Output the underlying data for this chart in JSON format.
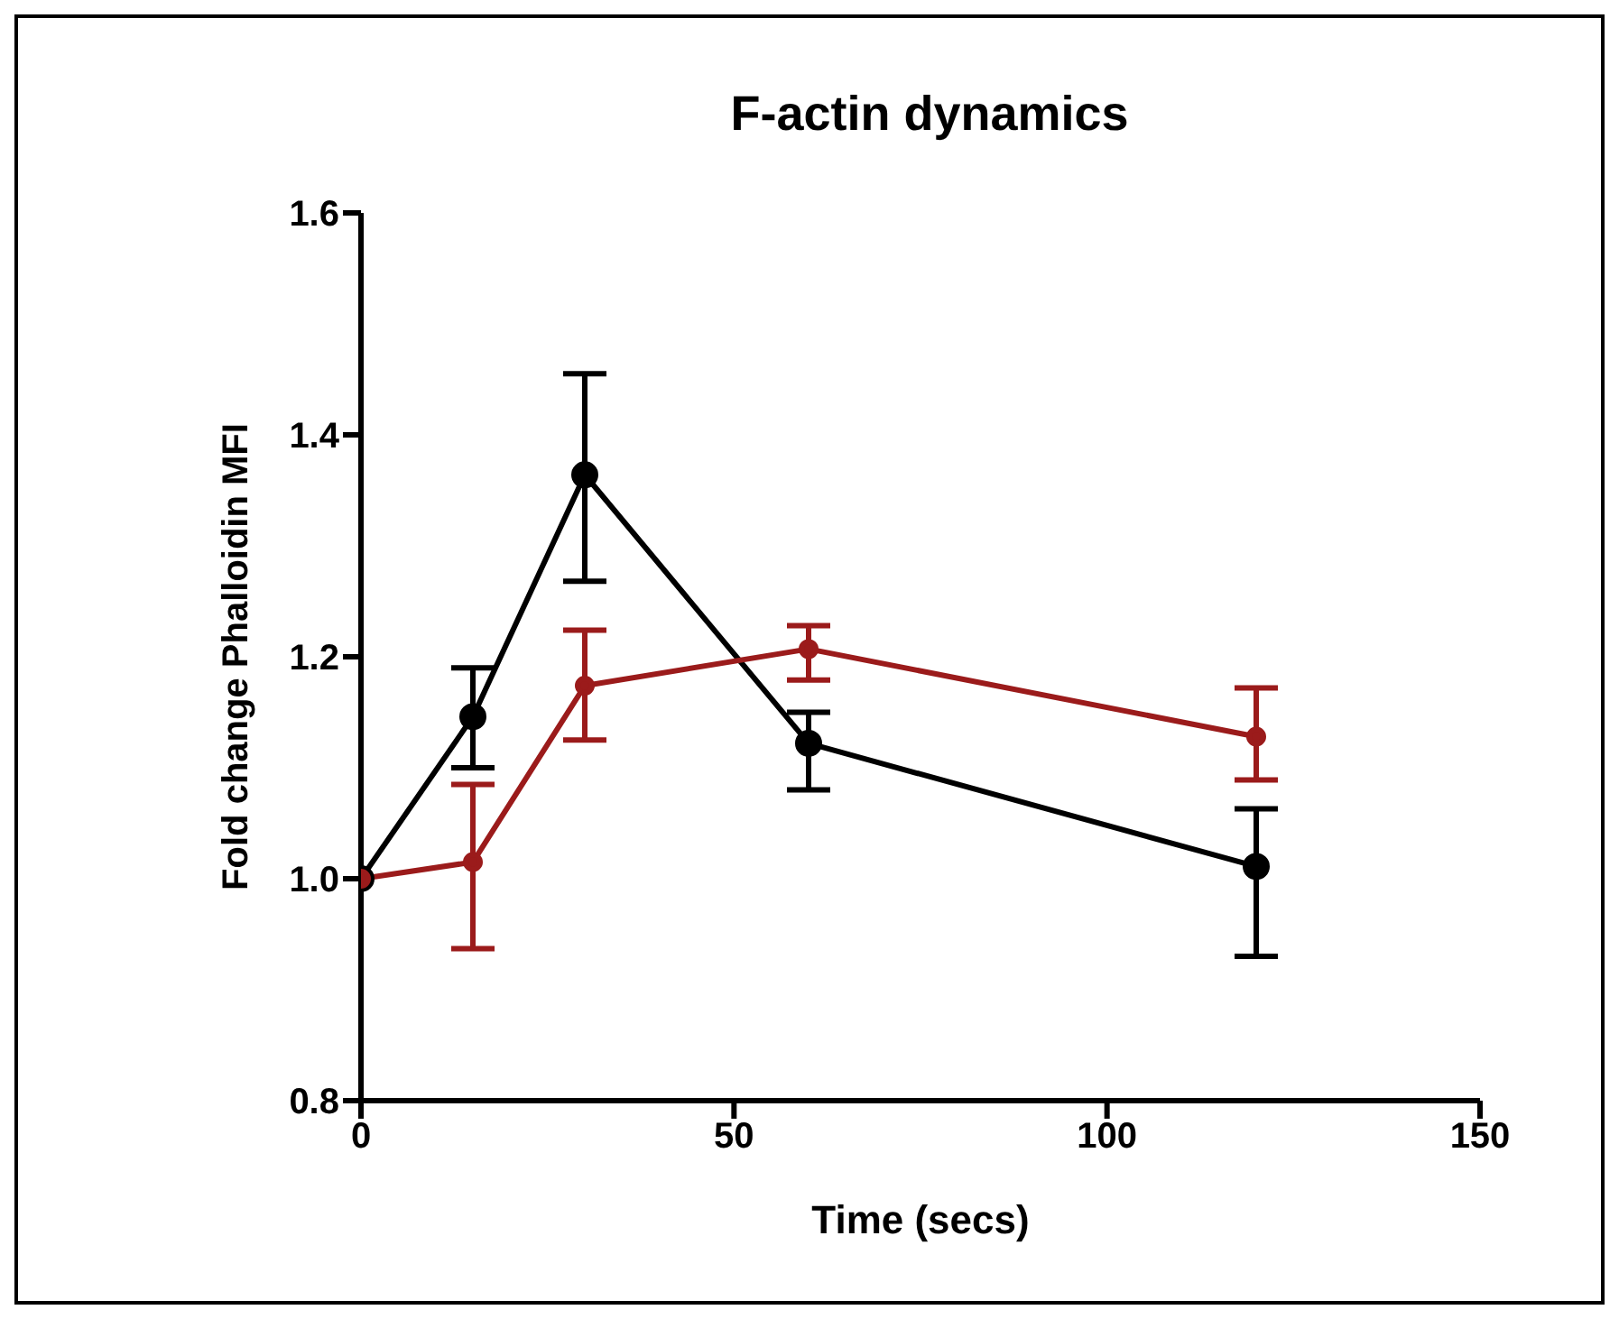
{
  "chart_data": {
    "type": "line",
    "title": "F-actin dynamics",
    "xlabel": "Time (secs)",
    "ylabel": "Fold change Phalloidin MFI",
    "x": [
      0,
      15,
      30,
      60,
      120
    ],
    "series": [
      {
        "color": "#000000",
        "values": [
          1.0,
          1.146,
          1.364,
          1.122,
          1.011
        ],
        "errors": [
          null,
          [
            1.1,
            1.19
          ],
          [
            1.268,
            1.455
          ],
          [
            1.08,
            1.15
          ],
          [
            0.93,
            1.063
          ]
        ]
      },
      {
        "color": "#9b1b1b",
        "values": [
          1.0,
          1.015,
          1.174,
          1.207,
          1.128
        ],
        "errors": [
          null,
          [
            0.937,
            1.085
          ],
          [
            1.125,
            1.224
          ],
          [
            1.179,
            1.228
          ],
          [
            1.089,
            1.172
          ]
        ]
      }
    ],
    "xlim": [
      0,
      150
    ],
    "xticks": [
      0,
      50,
      100,
      150
    ],
    "ylim": [
      0.8,
      1.6
    ],
    "yticks": [
      0.8,
      {
        "value": 1,
        "label": "1.0"
      },
      1.2,
      1.4,
      1.6
    ],
    "grid": false,
    "legend": false,
    "marker": "circle",
    "line_style": "solid"
  }
}
